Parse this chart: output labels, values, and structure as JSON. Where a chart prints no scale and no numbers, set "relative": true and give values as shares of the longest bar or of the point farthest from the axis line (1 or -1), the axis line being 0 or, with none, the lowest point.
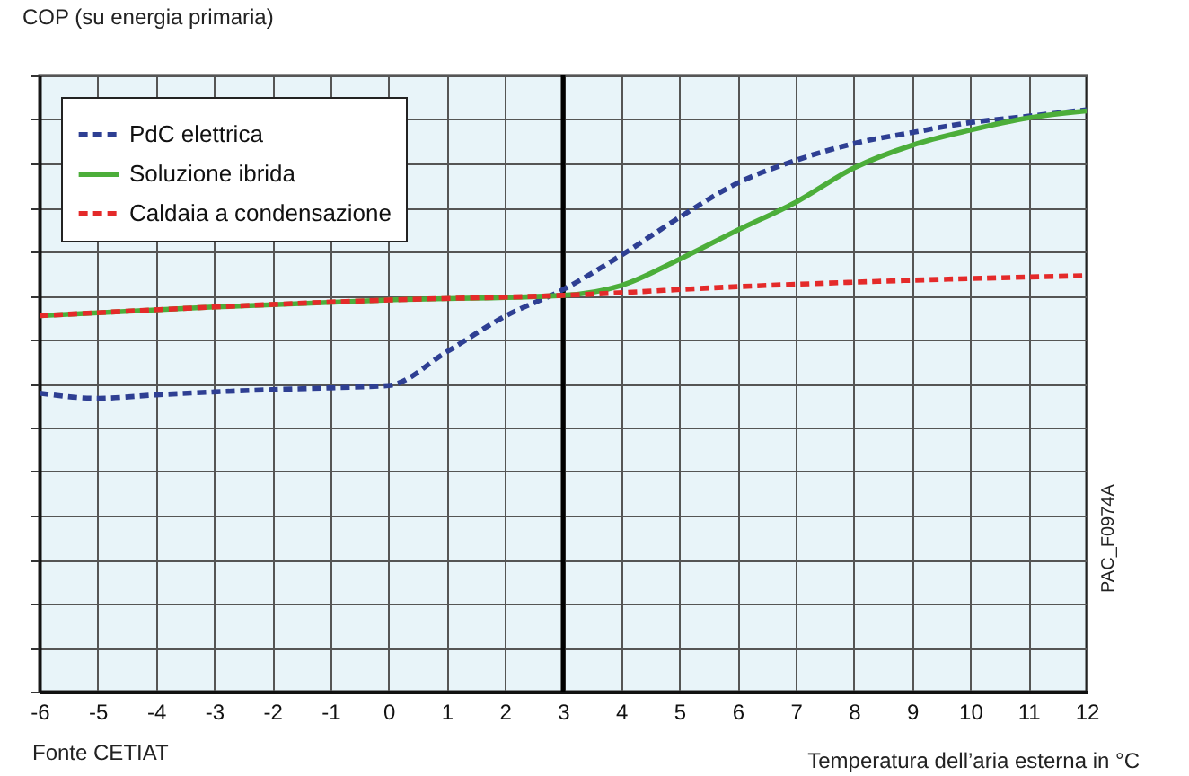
{
  "chart_data": {
    "type": "line",
    "relative": true,
    "ylabel": "COP (su energia primaria)",
    "xlabel": "Temperatura dell’aria esterna in °C",
    "xlim": [
      -6,
      12
    ],
    "xticks": [
      -6,
      -5,
      -4,
      -3,
      -2,
      -1,
      0,
      1,
      2,
      3,
      4,
      5,
      6,
      7,
      8,
      9,
      10,
      11,
      12
    ],
    "tick_labels": "x",
    "grid": true,
    "legend": "top left",
    "annotations": [
      "Fonte CETIAT",
      "PAC_F0974A"
    ],
    "ref_lines": [
      {
        "axis": "x",
        "value": 3,
        "color": "#000000"
      }
    ],
    "series": [
      {
        "name": "PdC elettrica",
        "color": "#2e3f93",
        "line_style": "dashed",
        "x": [
          -6,
          -5,
          -4,
          -3,
          -2,
          -1,
          0,
          1,
          2,
          3,
          4,
          5,
          6,
          7,
          8,
          9,
          10,
          11,
          12
        ],
        "values": [
          0.513,
          0.504,
          0.51,
          0.515,
          0.519,
          0.522,
          0.526,
          0.584,
          0.645,
          0.691,
          0.75,
          0.815,
          0.874,
          0.913,
          0.942,
          0.961,
          0.978,
          0.989,
          1
        ]
      },
      {
        "name": "Soluzione ibrida",
        "color": "#4cae3a",
        "line_style": "solid",
        "x": [
          -6,
          -3,
          0,
          3,
          4,
          5,
          6,
          7,
          8,
          9,
          10,
          11,
          12
        ],
        "values": [
          0.646,
          0.661,
          0.673,
          0.681,
          0.698,
          0.743,
          0.793,
          0.841,
          0.9,
          0.939,
          0.965,
          0.986,
          0.998
        ]
      },
      {
        "name": "Caldaia a condensazione",
        "color": "#e42a2a",
        "line_style": "dashed",
        "x": [
          -6,
          -3,
          0,
          3,
          6,
          9,
          12
        ],
        "values": [
          0.646,
          0.661,
          0.673,
          0.681,
          0.696,
          0.707,
          0.715
        ]
      }
    ]
  }
}
